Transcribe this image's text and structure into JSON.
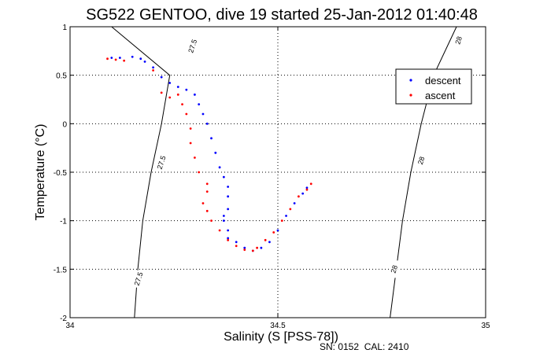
{
  "chart_data": {
    "type": "scatter",
    "title": "SG522 GENTOO, dive 19 started 25-Jan-2012 01:40:48",
    "xlabel": "Salinity (S [PSS-78])",
    "ylabel": "Temperature (°C)",
    "xlim": [
      34,
      35
    ],
    "ylim": [
      -2,
      1
    ],
    "xticks": [
      34,
      34.5,
      35
    ],
    "yticks": [
      -2,
      -1.5,
      -1,
      -0.5,
      0,
      0.5,
      1
    ],
    "xtick_labels": [
      "34",
      "34.5",
      "35"
    ],
    "ytick_labels": [
      "-2",
      "-1.5",
      "-1",
      "-0.5",
      "0",
      "0.5",
      "1"
    ],
    "grid": true,
    "legend_position": "top-right",
    "annotation": "SN: 0152  CAL: 2410",
    "density_contours": [
      {
        "label": "27.5",
        "points": [
          [
            34.1,
            1.0
          ],
          [
            34.24,
            0.5
          ],
          [
            34.22,
            0.0
          ],
          [
            34.195,
            -0.5
          ],
          [
            34.175,
            -1.0
          ],
          [
            34.163,
            -1.5
          ],
          [
            34.155,
            -2.0
          ]
        ],
        "label_positions": [
          [
            34.295,
            0.8
          ],
          [
            34.22,
            -0.4
          ],
          [
            34.165,
            -1.6
          ]
        ]
      },
      {
        "label": "28",
        "points": [
          [
            34.93,
            1.0
          ],
          [
            34.875,
            0.5
          ],
          [
            34.845,
            0.0
          ],
          [
            34.82,
            -0.5
          ],
          [
            34.8,
            -1.0
          ],
          [
            34.785,
            -1.5
          ],
          [
            34.77,
            -2.0
          ]
        ],
        "label_positions": [
          [
            34.935,
            0.86
          ],
          [
            34.845,
            -0.38
          ],
          [
            34.78,
            -1.5
          ]
        ]
      }
    ],
    "series": [
      {
        "name": "descent",
        "color": "#0000ff",
        "x": [
          34.1,
          34.12,
          34.15,
          34.17,
          34.18,
          34.2,
          34.22,
          34.24,
          34.26,
          34.28,
          34.3,
          34.31,
          34.32,
          34.33,
          34.34,
          34.35,
          34.36,
          34.37,
          34.38,
          34.38,
          34.38,
          34.37,
          34.37,
          34.38,
          34.38,
          34.4,
          34.42,
          34.44,
          34.46,
          34.48,
          34.5,
          34.52,
          34.54,
          34.56,
          34.57
        ],
        "y": [
          0.68,
          0.68,
          0.69,
          0.67,
          0.64,
          0.58,
          0.48,
          0.42,
          0.38,
          0.35,
          0.3,
          0.2,
          0.1,
          0.0,
          -0.15,
          -0.3,
          -0.45,
          -0.55,
          -0.65,
          -0.75,
          -0.88,
          -0.95,
          -1.0,
          -1.1,
          -1.18,
          -1.22,
          -1.28,
          -1.31,
          -1.28,
          -1.22,
          -1.1,
          -0.95,
          -0.82,
          -0.72,
          -0.66
        ]
      },
      {
        "name": "ascent",
        "color": "#ff0000",
        "x": [
          34.09,
          34.11,
          34.13,
          34.2,
          34.22,
          34.24,
          34.26,
          34.27,
          34.28,
          34.29,
          34.29,
          34.3,
          34.31,
          34.33,
          34.33,
          34.32,
          34.33,
          34.34,
          34.36,
          34.38,
          34.4,
          34.42,
          34.44,
          34.45,
          34.47,
          34.49,
          34.51,
          34.53,
          34.55,
          34.57,
          34.58
        ],
        "y": [
          0.67,
          0.66,
          0.65,
          0.55,
          0.32,
          0.27,
          0.3,
          0.2,
          0.1,
          -0.05,
          -0.2,
          -0.35,
          -0.5,
          -0.62,
          -0.7,
          -0.82,
          -0.9,
          -1.0,
          -1.1,
          -1.2,
          -1.26,
          -1.3,
          -1.31,
          -1.28,
          -1.2,
          -1.12,
          -1.0,
          -0.88,
          -0.75,
          -0.68,
          -0.62
        ]
      }
    ]
  }
}
